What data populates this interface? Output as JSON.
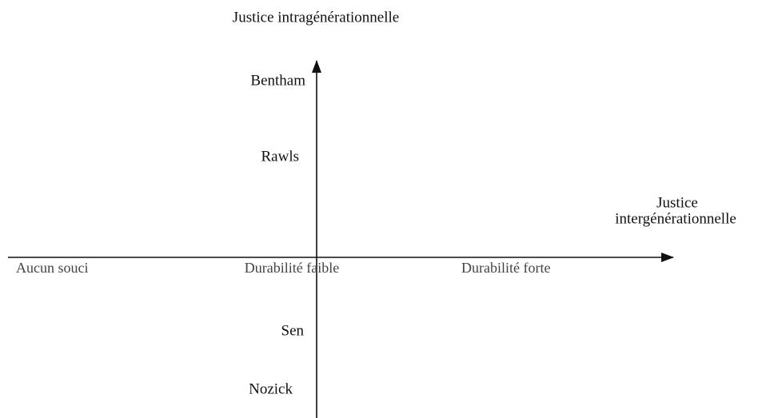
{
  "vertical_axis": {
    "label": "Justice intragénérationnelle",
    "positions": [
      "Bentham",
      "Rawls",
      "Sen",
      "Nozick"
    ]
  },
  "horizontal_axis": {
    "label_lines": [
      "Justice",
      "intergénérationnelle"
    ],
    "positions": [
      "Aucun souci",
      "Durabilité faible",
      "Durabilité forte"
    ]
  }
}
